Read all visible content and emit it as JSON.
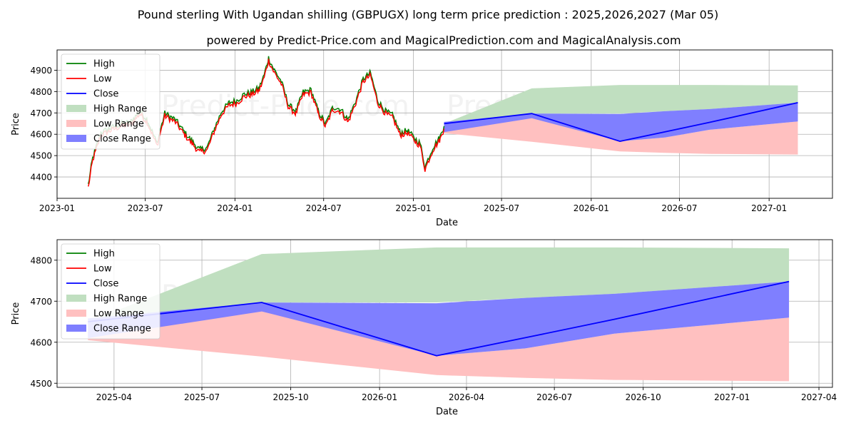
{
  "title": "Pound sterling With Ugandan shilling (GBPUGX) long term price prediction : 2025,2026,2027 (Mar 05)",
  "subtitle": "powered by Predict-Price.com and MagicalPrediction.com and MagicalAnalysis.com",
  "watermark": "Predict-Price.com",
  "colors": {
    "high": "#008000",
    "low": "#ff0000",
    "close": "#0000ff",
    "high_range": "#c0dfc0",
    "low_range": "#ffc0c0",
    "close_range": "#7f7fff",
    "grid": "#b0b0b0",
    "watermark": "#f2f2f2"
  },
  "chart_data": [
    {
      "type": "line",
      "name": "overview",
      "xlabel": "Date",
      "ylabel": "Price",
      "xlim": [
        "2023-01-01",
        "2027-05-11"
      ],
      "ylim": [
        4300,
        4995
      ],
      "grid": true,
      "legend_position": "upper-left",
      "x_ticks": [
        "2023-01",
        "2023-07",
        "2024-01",
        "2024-07",
        "2025-01",
        "2025-07",
        "2026-01",
        "2026-07",
        "2027-01"
      ],
      "x_tick_dates": [
        "2023-01-01",
        "2023-07-01",
        "2024-01-01",
        "2024-07-01",
        "2025-01-01",
        "2025-07-01",
        "2026-01-01",
        "2026-07-01",
        "2027-01-01"
      ],
      "y_ticks": [
        4400,
        4500,
        4600,
        4700,
        4800,
        4900
      ],
      "legend": [
        "High",
        "Low",
        "Close",
        "High Range",
        "Low Range",
        "Close Range"
      ],
      "historical": {
        "dates": [
          "2023-03-06",
          "2023-03-15",
          "2023-04-01",
          "2023-04-20",
          "2023-05-10",
          "2023-06-01",
          "2023-06-20",
          "2023-07-05",
          "2023-07-25",
          "2023-08-10",
          "2023-09-01",
          "2023-09-20",
          "2023-10-05",
          "2023-10-20",
          "2023-11-05",
          "2023-11-20",
          "2023-12-05",
          "2023-12-20",
          "2024-01-05",
          "2024-01-20",
          "2024-02-05",
          "2024-02-20",
          "2024-03-01",
          "2024-03-10",
          "2024-03-20",
          "2024-04-05",
          "2024-04-20",
          "2024-05-05",
          "2024-05-20",
          "2024-06-05",
          "2024-06-20",
          "2024-07-05",
          "2024-07-20",
          "2024-08-05",
          "2024-08-20",
          "2024-09-05",
          "2024-09-20",
          "2024-10-05",
          "2024-10-20",
          "2024-11-05",
          "2024-11-20",
          "2024-12-05",
          "2024-12-20",
          "2025-01-05",
          "2025-01-15",
          "2025-01-25",
          "2025-02-10",
          "2025-02-25",
          "2025-03-05"
        ],
        "close": [
          4355,
          4480,
          4600,
          4620,
          4640,
          4650,
          4700,
          4660,
          4550,
          4690,
          4660,
          4600,
          4560,
          4520,
          4530,
          4620,
          4700,
          4740,
          4750,
          4780,
          4790,
          4810,
          4870,
          4950,
          4900,
          4840,
          4730,
          4700,
          4790,
          4800,
          4700,
          4640,
          4720,
          4710,
          4660,
          4750,
          4850,
          4880,
          4750,
          4700,
          4680,
          4600,
          4610,
          4570,
          4550,
          4440,
          4530,
          4580,
          4630
        ]
      },
      "forecast": {
        "dates": [
          "2025-03-05",
          "2025-09-01",
          "2026-03-01",
          "2026-06-01",
          "2026-09-01",
          "2027-03-01"
        ],
        "close": [
          4650,
          4697,
          4567,
          4611,
          4656,
          4748
        ],
        "high_range": [
          [
            4650,
            4650
          ],
          [
            4697,
            4815
          ],
          [
            4697,
            4831
          ],
          [
            4708,
            4831
          ],
          [
            4718,
            4831
          ],
          [
            4748,
            4829
          ]
        ],
        "low_range": [
          [
            4605,
            4650
          ],
          [
            4565,
            4677
          ],
          [
            4520,
            4567
          ],
          [
            4513,
            4585
          ],
          [
            4508,
            4621
          ],
          [
            4505,
            4660
          ]
        ],
        "close_range": [
          [
            4610,
            4658
          ],
          [
            4675,
            4697
          ],
          [
            4567,
            4695
          ],
          [
            4585,
            4708
          ],
          [
            4621,
            4718
          ],
          [
            4660,
            4748
          ]
        ]
      }
    },
    {
      "type": "line",
      "name": "forecast-zoom",
      "xlabel": "Date",
      "ylabel": "Price",
      "xlim": [
        "2025-02-01",
        "2027-04-15"
      ],
      "ylim": [
        4490,
        4850
      ],
      "grid": true,
      "legend_position": "upper-left",
      "x_ticks": [
        "2025-04",
        "2025-07",
        "2025-10",
        "2026-01",
        "2026-04",
        "2026-07",
        "2026-10",
        "2027-01",
        "2027-04"
      ],
      "x_tick_dates": [
        "2025-04-01",
        "2025-07-01",
        "2025-10-01",
        "2026-01-01",
        "2026-04-01",
        "2026-07-01",
        "2026-10-01",
        "2027-01-01",
        "2027-04-01"
      ],
      "y_ticks": [
        4500,
        4600,
        4700,
        4800
      ],
      "legend": [
        "High",
        "Low",
        "Close",
        "High Range",
        "Low Range",
        "Close Range"
      ],
      "forecast": {
        "dates": [
          "2025-03-05",
          "2025-09-01",
          "2026-03-01",
          "2026-06-01",
          "2026-09-01",
          "2027-03-01"
        ],
        "close": [
          4650,
          4697,
          4567,
          4611,
          4656,
          4748
        ],
        "high_range": [
          [
            4650,
            4650
          ],
          [
            4697,
            4815
          ],
          [
            4697,
            4831
          ],
          [
            4708,
            4831
          ],
          [
            4718,
            4831
          ],
          [
            4748,
            4829
          ]
        ],
        "low_range": [
          [
            4605,
            4650
          ],
          [
            4565,
            4677
          ],
          [
            4520,
            4567
          ],
          [
            4513,
            4585
          ],
          [
            4508,
            4621
          ],
          [
            4505,
            4660
          ]
        ],
        "close_range": [
          [
            4610,
            4658
          ],
          [
            4675,
            4697
          ],
          [
            4567,
            4695
          ],
          [
            4585,
            4708
          ],
          [
            4621,
            4718
          ],
          [
            4660,
            4748
          ]
        ]
      }
    }
  ]
}
